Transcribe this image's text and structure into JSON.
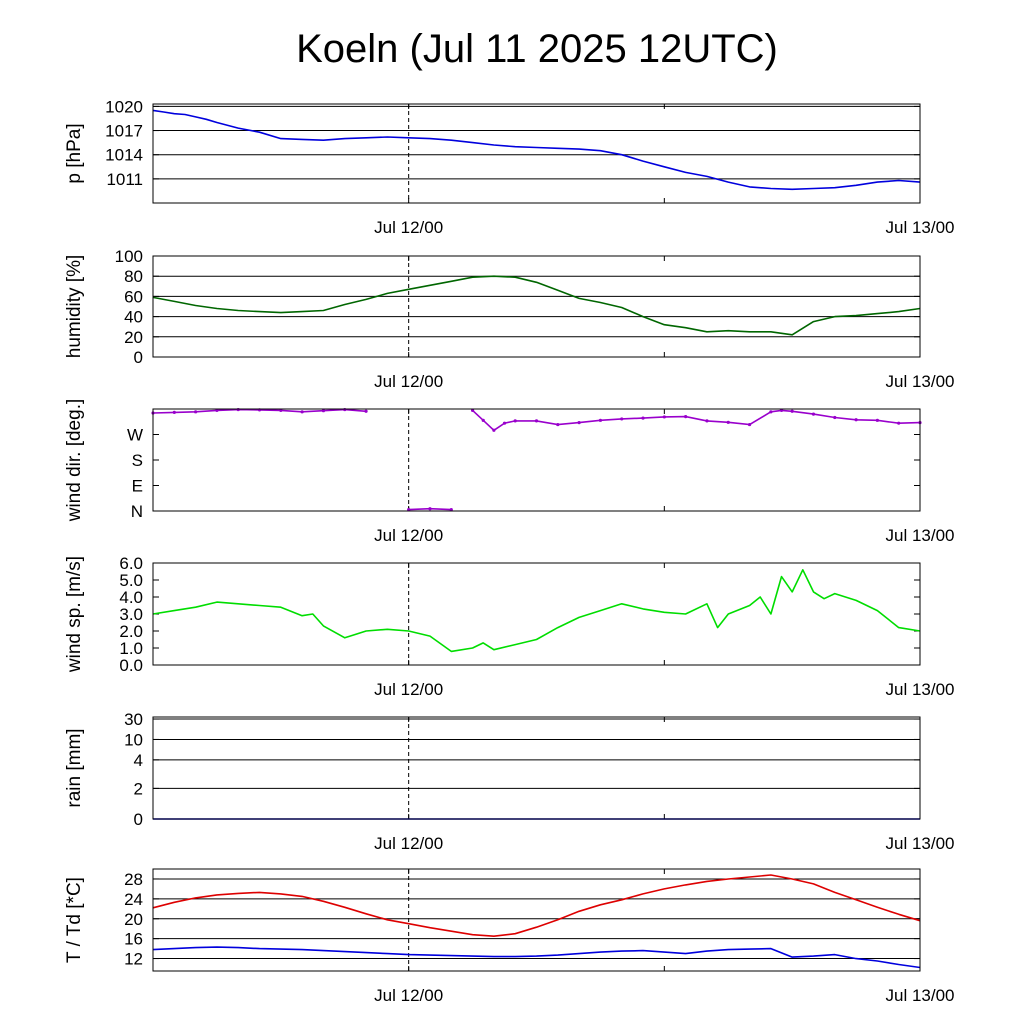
{
  "title": "Koeln (Jul 11 2025 12UTC)",
  "x_tick_labels": [
    "Jul 12/00",
    "Jul 13/00"
  ],
  "chart_data": [
    {
      "id": "pressure",
      "type": "line",
      "ylabel": "p [hPa]",
      "ylim": [
        1008,
        1020.3
      ],
      "yticks": [
        1011,
        1014,
        1017,
        1020
      ],
      "ytick_labels": [
        "1011",
        "1014",
        "1017",
        "1020"
      ],
      "grid": true,
      "x_unit": "hours after Jul 11 12UTC",
      "xlim": [
        0,
        36
      ],
      "series": [
        {
          "color": "#0000dd",
          "x": [
            0,
            0.5,
            1,
            1.5,
            2,
            2.5,
            3,
            4,
            5,
            6,
            7,
            8,
            9,
            10,
            11,
            12,
            13,
            14,
            15,
            16,
            17,
            18,
            19,
            20,
            21,
            22,
            23,
            24,
            25,
            26,
            27,
            28,
            29,
            30,
            31,
            32,
            33,
            34,
            35,
            36
          ],
          "y": [
            1019.5,
            1019.3,
            1019.1,
            1019.0,
            1018.7,
            1018.4,
            1018.0,
            1017.3,
            1016.8,
            1016.0,
            1015.9,
            1015.8,
            1016.0,
            1016.1,
            1016.2,
            1016.1,
            1016.0,
            1015.8,
            1015.5,
            1015.2,
            1015.0,
            1014.9,
            1014.8,
            1014.7,
            1014.5,
            1014.0,
            1013.2,
            1012.5,
            1011.8,
            1011.3,
            1010.6,
            1010.0,
            1009.8,
            1009.7,
            1009.8,
            1009.9,
            1010.2,
            1010.6,
            1010.8,
            1010.6
          ]
        }
      ]
    },
    {
      "id": "humidity",
      "type": "line",
      "ylabel": "humidity [%]",
      "ylim": [
        0,
        100
      ],
      "yticks": [
        0,
        20,
        40,
        60,
        80,
        100
      ],
      "ytick_labels": [
        "0",
        "20",
        "40",
        "60",
        "80",
        "100"
      ],
      "grid": true,
      "x_unit": "hours after Jul 11 12UTC",
      "xlim": [
        0,
        36
      ],
      "series": [
        {
          "color": "#006600",
          "x": [
            0,
            1,
            2,
            3,
            4,
            5,
            6,
            7,
            8,
            9,
            10,
            11,
            12,
            13,
            14,
            15,
            16,
            17,
            18,
            19,
            20,
            21,
            22,
            23,
            24,
            25,
            26,
            27,
            28,
            29,
            30,
            31,
            32,
            33,
            34,
            35,
            36
          ],
          "y": [
            59,
            55,
            51,
            48,
            46,
            45,
            44,
            45,
            46,
            52,
            57,
            63,
            67,
            71,
            75,
            79,
            80,
            79,
            74,
            66,
            58,
            54,
            49,
            40,
            32,
            29,
            25,
            26,
            25,
            25,
            22,
            35,
            40,
            41,
            43,
            45,
            48
          ]
        }
      ]
    },
    {
      "id": "wind_direction",
      "type": "scatter",
      "ylabel": "wind dir. [deg.]",
      "ylim": [
        0,
        360
      ],
      "yticks": [
        0,
        90,
        180,
        270
      ],
      "ytick_labels": [
        "N",
        "E",
        "S",
        "W"
      ],
      "grid": false,
      "x_unit": "hours after Jul 11 12UTC",
      "xlim": [
        0,
        36
      ],
      "series": [
        {
          "color": "#9900cc",
          "x": [
            0,
            1,
            2,
            3,
            4,
            5,
            6,
            7,
            8,
            9,
            10,
            12,
            13,
            14,
            15,
            15.5,
            16,
            16.5,
            17,
            18,
            19,
            20,
            21,
            22,
            23,
            24,
            25,
            26,
            27,
            28,
            29,
            29.5,
            30,
            31,
            32,
            33,
            34,
            35,
            36
          ],
          "y": [
            346,
            348,
            350,
            355,
            358,
            357,
            355,
            350,
            354,
            358,
            352,
            5,
            8,
            5,
            355,
            320,
            285,
            310,
            318,
            318,
            305,
            312,
            320,
            325,
            328,
            332,
            333,
            318,
            313,
            305,
            350,
            355,
            352,
            342,
            330,
            322,
            320,
            310,
            312
          ]
        }
      ]
    },
    {
      "id": "wind_speed",
      "type": "line",
      "ylabel": "wind sp. [m/s]",
      "ylim": [
        0,
        6
      ],
      "yticks": [
        0,
        1,
        2,
        3,
        4,
        5,
        6
      ],
      "ytick_labels": [
        "0.0",
        "1.0",
        "2.0",
        "3.0",
        "4.0",
        "5.0",
        "6.0"
      ],
      "grid": false,
      "x_unit": "hours after Jul 11 12UTC",
      "xlim": [
        0,
        36
      ],
      "series": [
        {
          "color": "#00dd00",
          "x": [
            0,
            1,
            2,
            3,
            4,
            5,
            6,
            7,
            7.5,
            8,
            9,
            10,
            11,
            12,
            13,
            14,
            15,
            15.5,
            16,
            17,
            18,
            19,
            20,
            21,
            22,
            23,
            24,
            25,
            26,
            26.5,
            27,
            28,
            28.5,
            29,
            29.5,
            30,
            30.5,
            31,
            31.5,
            32,
            33,
            34,
            35,
            36
          ],
          "y": [
            3.0,
            3.2,
            3.4,
            3.7,
            3.6,
            3.5,
            3.4,
            2.9,
            3.0,
            2.3,
            1.6,
            2.0,
            2.1,
            2.0,
            1.7,
            0.8,
            1.0,
            1.3,
            0.9,
            1.2,
            1.5,
            2.2,
            2.8,
            3.2,
            3.6,
            3.3,
            3.1,
            3.0,
            3.6,
            2.2,
            3.0,
            3.5,
            4.0,
            3.0,
            5.2,
            4.3,
            5.6,
            4.3,
            3.9,
            4.2,
            3.8,
            3.2,
            2.2,
            2.0
          ]
        }
      ]
    },
    {
      "id": "rain",
      "type": "line",
      "ylabel": "rain [mm]",
      "scale": "nonlinear",
      "ylim": [
        0,
        30
      ],
      "yticks": [
        0,
        2,
        4,
        10,
        30
      ],
      "ytick_labels": [
        "0",
        "2",
        "4",
        "10",
        "30"
      ],
      "grid": true,
      "x_unit": "hours after Jul 11 12UTC",
      "xlim": [
        0,
        36
      ],
      "series": [
        {
          "color": "#0000dd",
          "x": [
            0,
            36
          ],
          "y": [
            0,
            0
          ]
        }
      ]
    },
    {
      "id": "temperature",
      "type": "line",
      "ylabel": "T / Td [*C]",
      "ylim": [
        9.5,
        30
      ],
      "yticks": [
        12,
        16,
        20,
        24,
        28
      ],
      "ytick_labels": [
        "12",
        "16",
        "20",
        "24",
        "28"
      ],
      "grid": true,
      "x_unit": "hours after Jul 11 12UTC",
      "xlim": [
        0,
        36
      ],
      "series": [
        {
          "name": "T",
          "color": "#dd0000",
          "x": [
            0,
            1,
            2,
            3,
            4,
            5,
            6,
            7,
            8,
            9,
            10,
            11,
            12,
            13,
            14,
            15,
            16,
            17,
            18,
            19,
            20,
            21,
            22,
            23,
            24,
            25,
            26,
            27,
            28,
            29,
            30,
            31,
            32,
            33,
            34,
            35,
            36
          ],
          "y": [
            22.2,
            23.3,
            24.2,
            24.8,
            25.1,
            25.3,
            25.0,
            24.5,
            23.5,
            22.3,
            21.0,
            19.8,
            19.0,
            18.2,
            17.5,
            16.8,
            16.5,
            17.0,
            18.3,
            19.8,
            21.5,
            22.8,
            23.8,
            25.0,
            26.0,
            26.8,
            27.5,
            28.0,
            28.4,
            28.8,
            28.0,
            27.0,
            25.3,
            23.8,
            22.3,
            20.9,
            19.6
          ]
        },
        {
          "name": "Td",
          "color": "#0000dd",
          "x": [
            0,
            1,
            2,
            3,
            4,
            5,
            6,
            7,
            8,
            9,
            10,
            11,
            12,
            13,
            14,
            15,
            16,
            17,
            18,
            19,
            20,
            21,
            22,
            23,
            24,
            25,
            26,
            27,
            28,
            29,
            30,
            31,
            32,
            33,
            34,
            35,
            36
          ],
          "y": [
            13.8,
            14.0,
            14.2,
            14.3,
            14.2,
            14.0,
            13.9,
            13.8,
            13.6,
            13.4,
            13.2,
            13.0,
            12.8,
            12.7,
            12.6,
            12.5,
            12.4,
            12.4,
            12.5,
            12.7,
            13.0,
            13.3,
            13.5,
            13.6,
            13.3,
            13.0,
            13.5,
            13.8,
            13.9,
            14.0,
            12.3,
            12.5,
            12.8,
            12.0,
            11.5,
            10.8,
            10.2
          ]
        }
      ]
    }
  ]
}
